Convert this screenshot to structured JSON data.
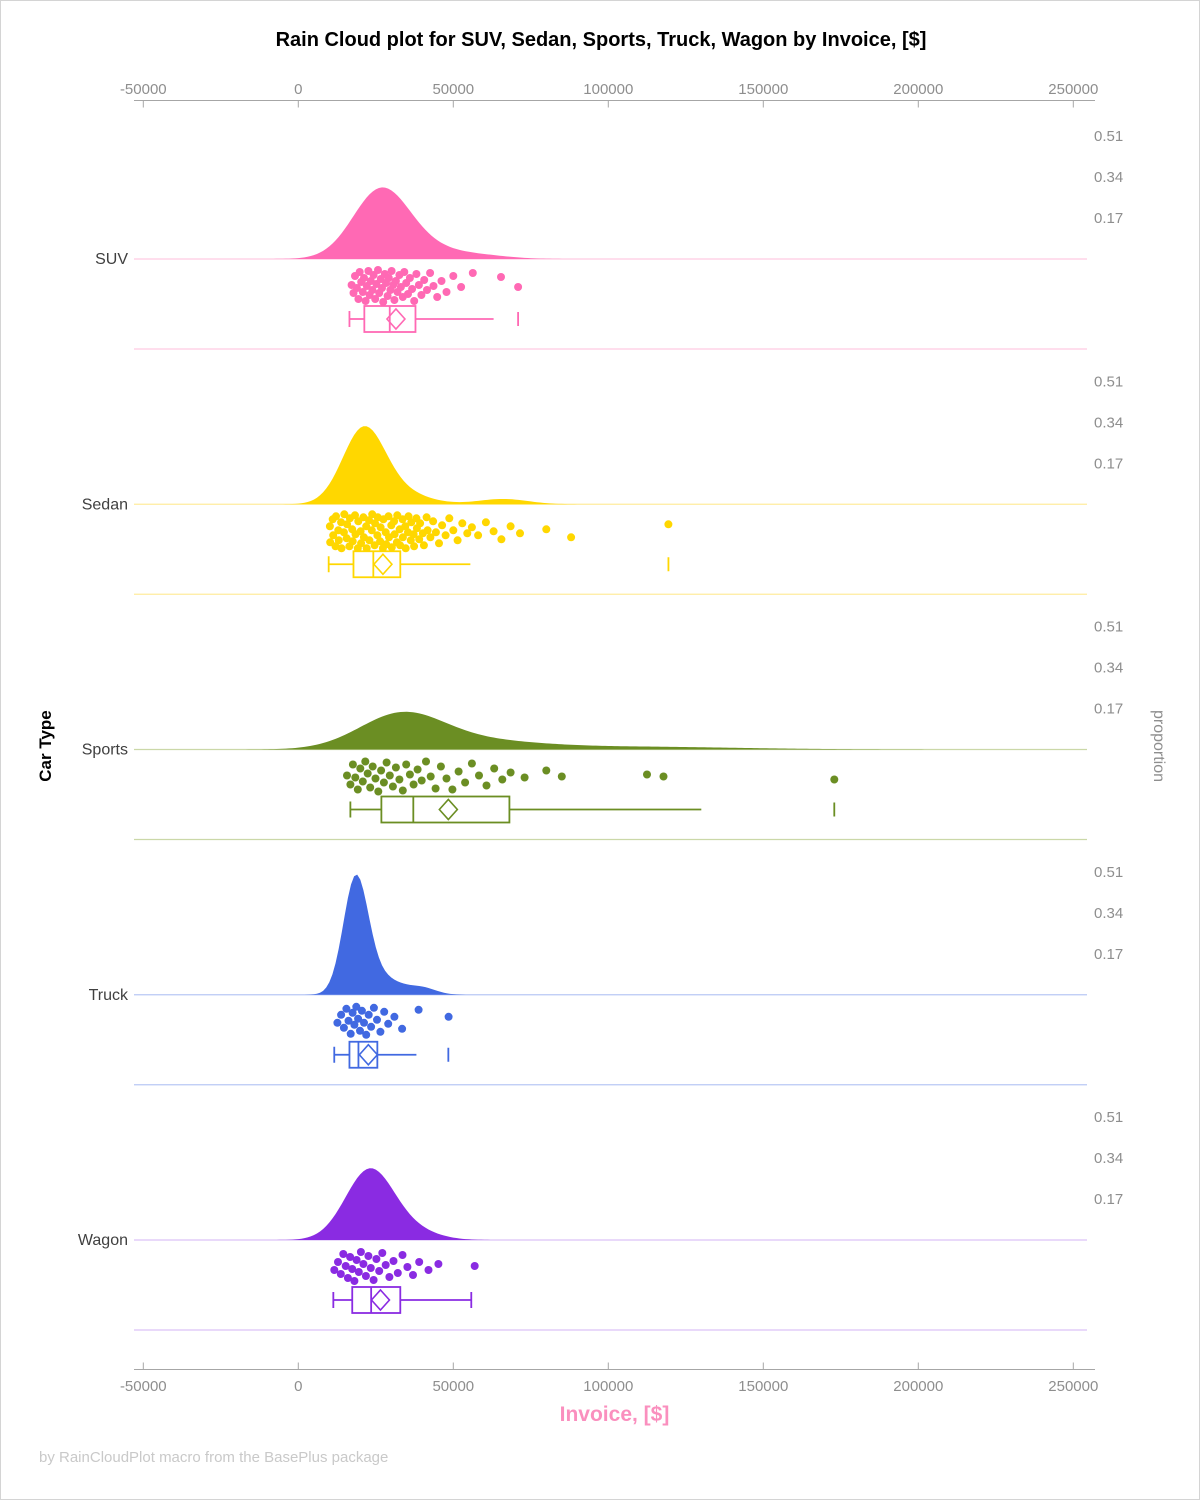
{
  "title": "Rain Cloud plot for SUV, Sedan, Sports, Truck, Wagon by Invoice, [$]",
  "footer": "by RainCloudPlot macro from the BasePlus package",
  "x_axis": {
    "label": "Invoice, [$]",
    "label_color": "#FA8FBE",
    "tick_values": [
      -50000,
      0,
      50000,
      100000,
      150000,
      200000,
      250000
    ],
    "tick_labels": [
      "-50000",
      "0",
      "50000",
      "100000",
      "150000",
      "200000",
      "250000"
    ]
  },
  "y_axis": {
    "label": "Car Type"
  },
  "right_axis": {
    "label": "proportion",
    "tick_labels": [
      "0.51",
      "0.34",
      "0.17"
    ],
    "tick_values": [
      0.51,
      0.34,
      0.17
    ]
  },
  "chart_data": {
    "type": "raincloud",
    "x_range": [
      -50000,
      250000
    ],
    "proportion_ticks": [
      0.51,
      0.34,
      0.17
    ],
    "categories": [
      "SUV",
      "Sedan",
      "Sports",
      "Truck",
      "Wagon"
    ],
    "series": [
      {
        "name": "SUV",
        "color": "#FF69B4",
        "tint": "#FFC9E2",
        "density": [
          {
            "mu": 26500,
            "sigma": 9000,
            "amp": 0.275
          },
          {
            "mu": 40000,
            "sigma": 11000,
            "amp": 0.045
          },
          {
            "mu": 60000,
            "sigma": 9000,
            "amp": 0.012
          }
        ],
        "box": {
          "low": 16500,
          "q1": 21300,
          "median": 29500,
          "mean": 31500,
          "q3": 37800,
          "high": 63000,
          "outliers": [
            70900
          ],
          "right_cap": false
        },
        "points": [
          [
            17200,
            26
          ],
          [
            17800,
            34
          ],
          [
            18300,
            17
          ],
          [
            18900,
            29
          ],
          [
            19400,
            40
          ],
          [
            19800,
            13
          ],
          [
            20300,
            23
          ],
          [
            20800,
            33
          ],
          [
            21200,
            19
          ],
          [
            21700,
            42
          ],
          [
            22100,
            27
          ],
          [
            22600,
            12
          ],
          [
            23000,
            36
          ],
          [
            23400,
            22
          ],
          [
            23900,
            31
          ],
          [
            24300,
            16
          ],
          [
            24800,
            40
          ],
          [
            25200,
            25
          ],
          [
            25700,
            11
          ],
          [
            26100,
            34
          ],
          [
            26600,
            20
          ],
          [
            27000,
            29
          ],
          [
            27400,
            43
          ],
          [
            27900,
            15
          ],
          [
            28300,
            24
          ],
          [
            28800,
            37
          ],
          [
            29200,
            19
          ],
          [
            29700,
            31
          ],
          [
            30100,
            12
          ],
          [
            30600,
            26
          ],
          [
            31000,
            41
          ],
          [
            31500,
            22
          ],
          [
            32000,
            33
          ],
          [
            32600,
            16
          ],
          [
            33100,
            28
          ],
          [
            33700,
            38
          ],
          [
            34200,
            13
          ],
          [
            34800,
            24
          ],
          [
            35400,
            35
          ],
          [
            36000,
            19
          ],
          [
            36700,
            30
          ],
          [
            37400,
            42
          ],
          [
            38100,
            15
          ],
          [
            38900,
            26
          ],
          [
            39700,
            36
          ],
          [
            40600,
            21
          ],
          [
            41500,
            31
          ],
          [
            42500,
            14
          ],
          [
            43600,
            27
          ],
          [
            44800,
            38
          ],
          [
            46200,
            22
          ],
          [
            47800,
            33
          ],
          [
            50000,
            17
          ],
          [
            52500,
            28
          ],
          [
            56300,
            14
          ],
          [
            65400,
            18
          ],
          [
            70900,
            28
          ]
        ]
      },
      {
        "name": "Sedan",
        "color": "#FFD700",
        "tint": "#FFEC9E",
        "density": [
          {
            "mu": 21000,
            "sigma": 6800,
            "amp": 0.3
          },
          {
            "mu": 32000,
            "sigma": 9000,
            "amp": 0.05
          },
          {
            "mu": 66000,
            "sigma": 8000,
            "amp": 0.022
          }
        ],
        "box": {
          "low": 9800,
          "q1": 17800,
          "median": 24200,
          "mean": 27300,
          "q3": 32900,
          "high": 55500,
          "outliers": [
            119400
          ],
          "right_cap": false
        },
        "points": [
          [
            10200,
            22
          ],
          [
            10300,
            38
          ],
          [
            11100,
            15
          ],
          [
            11250,
            31
          ],
          [
            12000,
            42
          ],
          [
            12150,
            12
          ],
          [
            12900,
            26
          ],
          [
            13050,
            36
          ],
          [
            13800,
            18
          ],
          [
            13950,
            44
          ],
          [
            14700,
            28
          ],
          [
            14850,
            10
          ],
          [
            15600,
            34
          ],
          [
            15750,
            20
          ],
          [
            16500,
            42
          ],
          [
            16650,
            14
          ],
          [
            17400,
            25
          ],
          [
            17550,
            37
          ],
          [
            18300,
            11
          ],
          [
            18450,
            30
          ],
          [
            19200,
            44
          ],
          [
            19350,
            17
          ],
          [
            20100,
            27
          ],
          [
            20250,
            39
          ],
          [
            21000,
            13
          ],
          [
            21150,
            33
          ],
          [
            21900,
            22
          ],
          [
            22050,
            44
          ],
          [
            22800,
            16
          ],
          [
            22950,
            36
          ],
          [
            23700,
            26
          ],
          [
            23850,
            10
          ],
          [
            24600,
            41
          ],
          [
            24750,
            19
          ],
          [
            25500,
            31
          ],
          [
            25650,
            13
          ],
          [
            26400,
            37
          ],
          [
            26550,
            23
          ],
          [
            27300,
            44
          ],
          [
            27450,
            15
          ],
          [
            28200,
            28
          ],
          [
            28350,
            40
          ],
          [
            29100,
            12
          ],
          [
            29250,
            33
          ],
          [
            30000,
            21
          ],
          [
            30150,
            43
          ],
          [
            30900,
            17
          ],
          [
            31050,
            30
          ],
          [
            31800,
            38
          ],
          [
            31950,
            11
          ],
          [
            32700,
            25
          ],
          [
            32850,
            41
          ],
          [
            33600,
            15
          ],
          [
            33750,
            33
          ],
          [
            34500,
            22
          ],
          [
            34650,
            44
          ],
          [
            35400,
            28
          ],
          [
            35550,
            12
          ],
          [
            36300,
            36
          ],
          [
            36450,
            18
          ],
          [
            37200,
            30
          ],
          [
            37350,
            42
          ],
          [
            38100,
            14
          ],
          [
            38250,
            24
          ],
          [
            39000,
            35
          ],
          [
            39300,
            19
          ],
          [
            40200,
            29
          ],
          [
            40500,
            41
          ],
          [
            41400,
            13
          ],
          [
            41700,
            26
          ],
          [
            42600,
            33
          ],
          [
            43500,
            17
          ],
          [
            44400,
            28
          ],
          [
            45400,
            39
          ],
          [
            46400,
            21
          ],
          [
            47500,
            31
          ],
          [
            48700,
            14
          ],
          [
            50000,
            26
          ],
          [
            51400,
            36
          ],
          [
            52900,
            19
          ],
          [
            54500,
            29
          ],
          [
            56000,
            23
          ],
          [
            58000,
            31
          ],
          [
            60500,
            18
          ],
          [
            63000,
            27
          ],
          [
            65500,
            35
          ],
          [
            68500,
            22
          ],
          [
            71500,
            29
          ],
          [
            80000,
            25
          ],
          [
            88000,
            33
          ],
          [
            119400,
            20
          ]
        ]
      },
      {
        "name": "Sports",
        "color": "#6B8E23",
        "tint": "#CBD8A8",
        "density": [
          {
            "mu": 33000,
            "sigma": 13500,
            "amp": 0.135
          },
          {
            "mu": 55000,
            "sigma": 20000,
            "amp": 0.035
          },
          {
            "mu": 105000,
            "sigma": 35000,
            "amp": 0.012
          }
        ],
        "box": {
          "low": 16800,
          "q1": 26800,
          "median": 37100,
          "mean": 48400,
          "q3": 68100,
          "high": 130000,
          "outliers": [
            172900
          ],
          "right_cap": false
        },
        "points": [
          [
            15700,
            26
          ],
          [
            16800,
            35
          ],
          [
            17600,
            15
          ],
          [
            18400,
            28
          ],
          [
            19200,
            40
          ],
          [
            20000,
            19
          ],
          [
            20800,
            32
          ],
          [
            21600,
            12
          ],
          [
            22400,
            24
          ],
          [
            23200,
            38
          ],
          [
            24000,
            17
          ],
          [
            24900,
            29
          ],
          [
            25800,
            42
          ],
          [
            26700,
            21
          ],
          [
            27600,
            33
          ],
          [
            28500,
            13
          ],
          [
            29500,
            26
          ],
          [
            30500,
            37
          ],
          [
            31500,
            18
          ],
          [
            32600,
            30
          ],
          [
            33700,
            41
          ],
          [
            34800,
            15
          ],
          [
            36000,
            25
          ],
          [
            37200,
            35
          ],
          [
            38500,
            20
          ],
          [
            39800,
            31
          ],
          [
            41200,
            12
          ],
          [
            42700,
            27
          ],
          [
            44300,
            39
          ],
          [
            46000,
            17
          ],
          [
            47800,
            29
          ],
          [
            49700,
            40
          ],
          [
            51700,
            22
          ],
          [
            53800,
            33
          ],
          [
            56000,
            14
          ],
          [
            58300,
            26
          ],
          [
            60700,
            36
          ],
          [
            63200,
            19
          ],
          [
            65800,
            30
          ],
          [
            68500,
            23
          ],
          [
            73000,
            28
          ],
          [
            80000,
            21
          ],
          [
            85000,
            27
          ],
          [
            112500,
            25
          ],
          [
            117800,
            27
          ],
          [
            172900,
            30
          ]
        ]
      },
      {
        "name": "Truck",
        "color": "#4169E1",
        "tint": "#B9C8F5",
        "density": [
          {
            "mu": 18500,
            "sigma": 4000,
            "amp": 0.46
          },
          {
            "mu": 26000,
            "sigma": 6500,
            "amp": 0.075
          },
          {
            "mu": 40000,
            "sigma": 4500,
            "amp": 0.027
          }
        ],
        "box": {
          "low": 11600,
          "q1": 16500,
          "median": 19400,
          "mean": 22600,
          "q3": 25500,
          "high": 38100,
          "outliers": [
            48400
          ],
          "right_cap": false
        },
        "points": [
          [
            12600,
            28
          ],
          [
            13800,
            20
          ],
          [
            14700,
            33
          ],
          [
            15500,
            14
          ],
          [
            16200,
            26
          ],
          [
            16900,
            39
          ],
          [
            17500,
            18
          ],
          [
            18100,
            30
          ],
          [
            18700,
            12
          ],
          [
            19300,
            24
          ],
          [
            19900,
            36
          ],
          [
            20500,
            16
          ],
          [
            21200,
            28
          ],
          [
            21900,
            40
          ],
          [
            22700,
            20
          ],
          [
            23500,
            32
          ],
          [
            24400,
            13
          ],
          [
            25400,
            25
          ],
          [
            26500,
            37
          ],
          [
            27700,
            17
          ],
          [
            29000,
            29
          ],
          [
            31000,
            22
          ],
          [
            33500,
            34
          ],
          [
            38800,
            15
          ],
          [
            48500,
            22
          ]
        ]
      },
      {
        "name": "Wagon",
        "color": "#8A2BE2",
        "tint": "#DCC2F6",
        "density": [
          {
            "mu": 23000,
            "sigma": 7800,
            "amp": 0.29
          },
          {
            "mu": 37000,
            "sigma": 8000,
            "amp": 0.035
          }
        ],
        "box": {
          "low": 11300,
          "q1": 17400,
          "median": 23500,
          "mean": 26500,
          "q3": 32900,
          "high": 55800,
          "outliers": [],
          "right_cap": true
        },
        "points": [
          [
            11600,
            30
          ],
          [
            12800,
            22
          ],
          [
            13700,
            34
          ],
          [
            14500,
            14
          ],
          [
            15300,
            26
          ],
          [
            16000,
            38
          ],
          [
            16700,
            17
          ],
          [
            17400,
            29
          ],
          [
            18100,
            41
          ],
          [
            18800,
            20
          ],
          [
            19500,
            32
          ],
          [
            20200,
            12
          ],
          [
            21000,
            24
          ],
          [
            21800,
            36
          ],
          [
            22600,
            16
          ],
          [
            23400,
            28
          ],
          [
            24300,
            40
          ],
          [
            25200,
            19
          ],
          [
            26100,
            31
          ],
          [
            27100,
            13
          ],
          [
            28200,
            25
          ],
          [
            29400,
            37
          ],
          [
            30700,
            21
          ],
          [
            32100,
            33
          ],
          [
            33600,
            15
          ],
          [
            35200,
            27
          ],
          [
            37000,
            35
          ],
          [
            39000,
            22
          ],
          [
            42000,
            30
          ],
          [
            45200,
            24
          ],
          [
            56900,
            26
          ]
        ]
      }
    ]
  }
}
